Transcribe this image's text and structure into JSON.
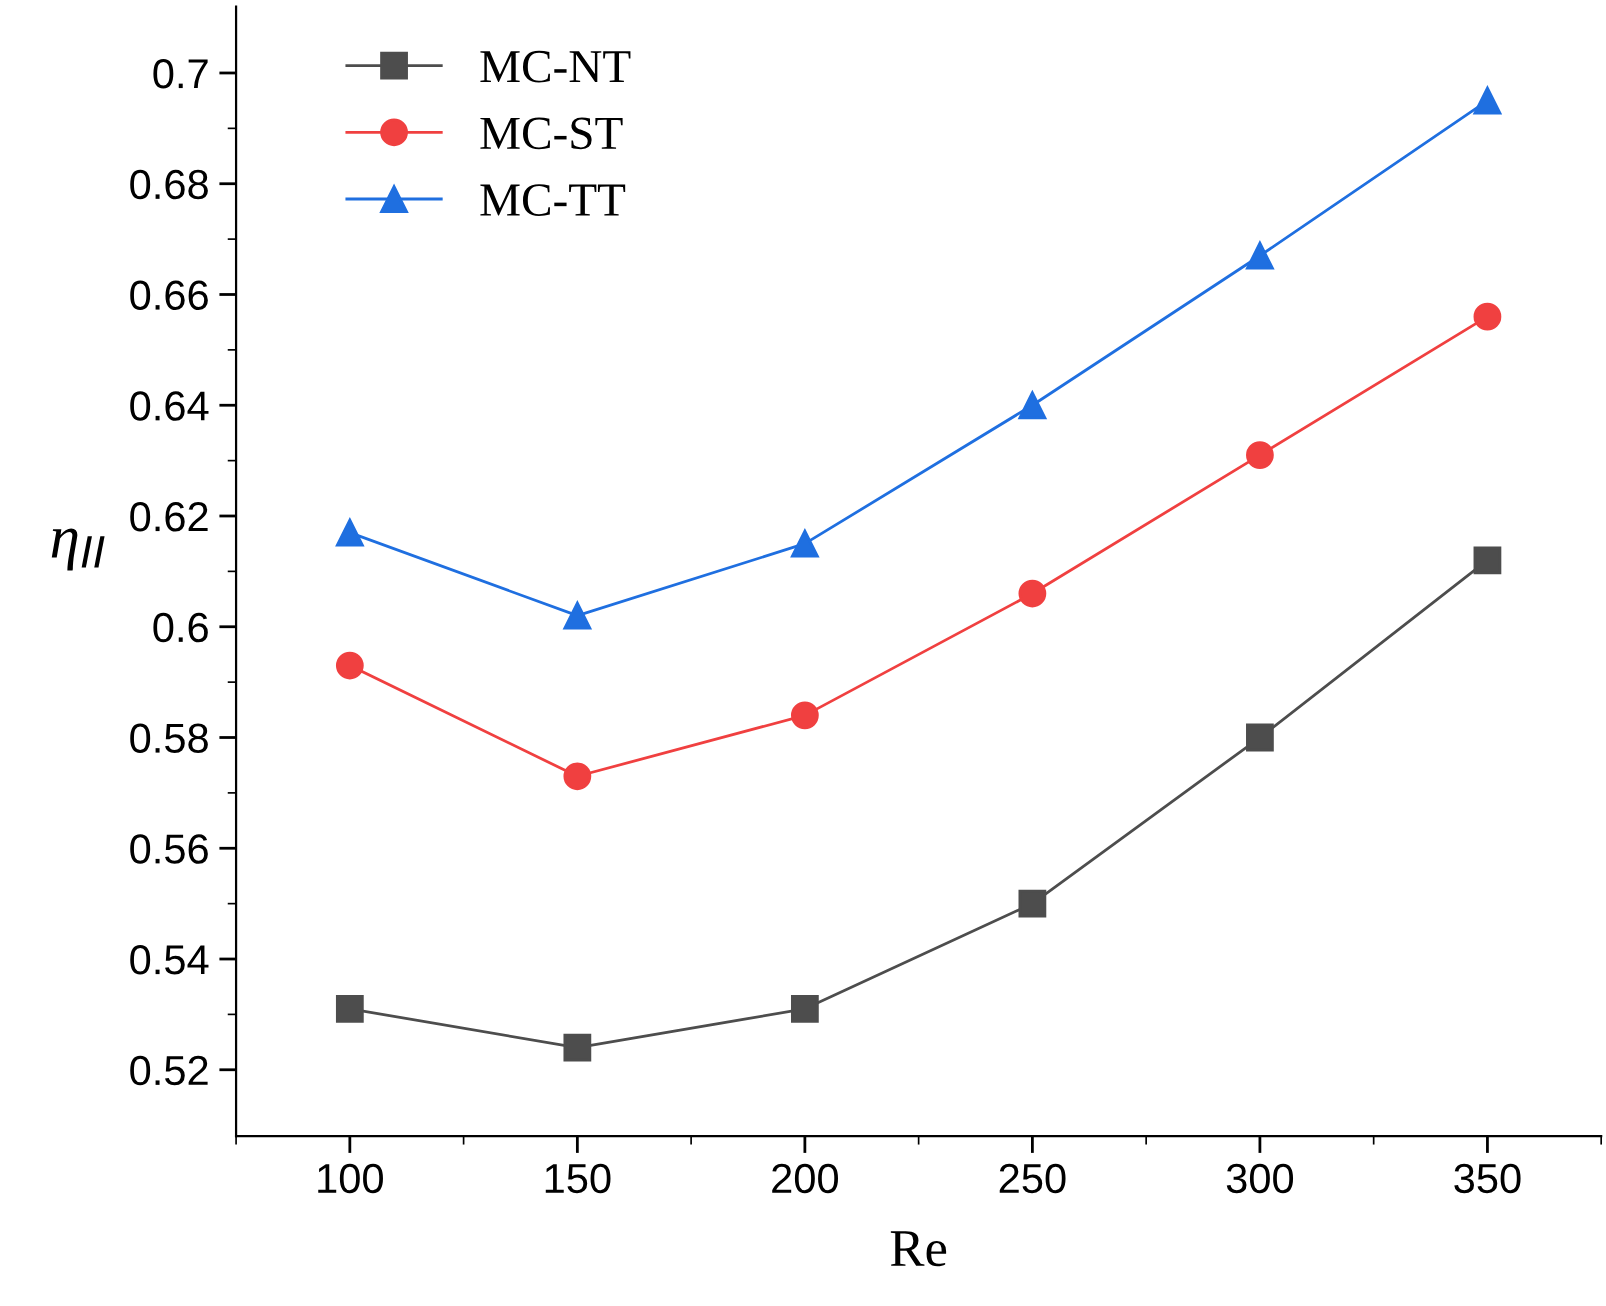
{
  "chart_data": {
    "type": "line",
    "xlabel": "Re",
    "ylabel": "η$_{II}$",
    "x": [
      100,
      150,
      200,
      250,
      300,
      350
    ],
    "series": [
      {
        "name": "MC-NT",
        "color": "#4d4d4d",
        "marker": "square",
        "values": [
          0.531,
          0.524,
          0.531,
          0.55,
          0.58,
          0.612
        ]
      },
      {
        "name": "MC-ST",
        "color": "#f04040",
        "marker": "circle",
        "values": [
          0.593,
          0.573,
          0.584,
          0.606,
          0.631,
          0.656
        ]
      },
      {
        "name": "MC-TT",
        "color": "#1f6fe0",
        "marker": "triangle",
        "values": [
          0.617,
          0.602,
          0.615,
          0.64,
          0.667,
          0.695
        ]
      }
    ],
    "xlim": [
      75,
      375
    ],
    "xticks": [
      100,
      150,
      200,
      250,
      300,
      350
    ],
    "ylim": [
      0.508,
      0.712
    ],
    "yticks": [
      0.52,
      0.54,
      0.56,
      0.58,
      {
        "value": 0.6,
        "label": "0.6"
      },
      0.62,
      0.64,
      0.66,
      0.68,
      {
        "value": 0.7,
        "label": "0.7"
      }
    ],
    "grid": false,
    "legend": "top left",
    "line_style": "solid"
  }
}
